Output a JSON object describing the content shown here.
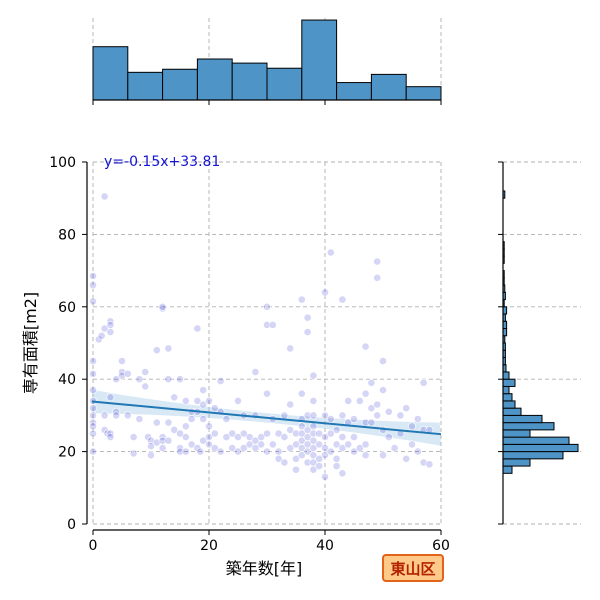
{
  "chart_data": {
    "type": "scatter",
    "xlabel": "築年数[年]",
    "ylabel": "専有面積[m2]",
    "xlim": [
      -1,
      60
    ],
    "ylim": [
      0,
      100
    ],
    "xticks": [
      0,
      20,
      40,
      60
    ],
    "yticks": [
      0,
      20,
      40,
      60,
      80,
      100
    ],
    "grid": true,
    "regression": {
      "slope": -0.15,
      "intercept": 33.81,
      "label": "y=-0.15x+33.81",
      "color": "#1f77b4"
    },
    "points": [
      [
        0,
        68.5
      ],
      [
        0,
        66
      ],
      [
        0,
        61.5
      ],
      [
        0,
        45
      ],
      [
        0,
        41.5
      ],
      [
        0,
        37
      ],
      [
        0,
        34
      ],
      [
        0,
        28
      ],
      [
        0,
        27
      ],
      [
        0,
        25
      ],
      [
        0,
        20
      ],
      [
        0,
        32
      ],
      [
        0,
        30
      ],
      [
        1,
        51
      ],
      [
        1.5,
        52
      ],
      [
        2,
        90.5
      ],
      [
        2,
        54
      ],
      [
        2,
        30
      ],
      [
        2,
        26
      ],
      [
        2.5,
        25
      ],
      [
        3,
        56
      ],
      [
        3,
        55
      ],
      [
        3,
        53
      ],
      [
        3,
        35
      ],
      [
        3,
        25
      ],
      [
        3,
        24
      ],
      [
        4,
        40
      ],
      [
        4,
        31
      ],
      [
        4,
        30
      ],
      [
        5,
        45
      ],
      [
        5,
        42
      ],
      [
        5,
        41
      ],
      [
        6,
        41.5
      ],
      [
        6,
        30
      ],
      [
        7,
        24
      ],
      [
        7,
        19.5
      ],
      [
        8,
        40
      ],
      [
        8,
        29
      ],
      [
        9,
        42
      ],
      [
        9,
        38
      ],
      [
        9.5,
        24
      ],
      [
        10,
        23
      ],
      [
        10,
        21.5
      ],
      [
        10,
        19
      ],
      [
        11,
        28
      ],
      [
        11,
        22.5
      ],
      [
        11,
        48
      ],
      [
        12,
        59.5
      ],
      [
        12,
        60
      ],
      [
        12,
        24
      ],
      [
        12,
        23
      ],
      [
        12,
        21
      ],
      [
        13,
        48.5
      ],
      [
        13,
        40
      ],
      [
        13,
        28
      ],
      [
        13,
        23
      ],
      [
        14,
        35
      ],
      [
        14,
        26
      ],
      [
        15,
        40
      ],
      [
        15,
        25
      ],
      [
        15,
        21
      ],
      [
        15,
        20
      ],
      [
        16,
        34
      ],
      [
        16,
        27
      ],
      [
        16,
        24
      ],
      [
        16,
        20
      ],
      [
        17,
        31
      ],
      [
        17,
        29
      ],
      [
        17,
        22
      ],
      [
        18,
        54
      ],
      [
        18,
        34
      ],
      [
        18,
        31
      ],
      [
        18,
        21
      ],
      [
        18.5,
        20
      ],
      [
        19,
        37
      ],
      [
        19,
        33
      ],
      [
        19,
        29
      ],
      [
        19,
        23
      ],
      [
        20,
        34
      ],
      [
        20,
        27
      ],
      [
        20,
        24
      ],
      [
        20,
        22
      ],
      [
        21,
        32
      ],
      [
        21,
        25
      ],
      [
        21,
        21
      ],
      [
        22,
        39.5
      ],
      [
        22,
        31
      ],
      [
        22,
        20
      ],
      [
        23,
        29
      ],
      [
        23,
        24
      ],
      [
        24,
        25
      ],
      [
        24,
        21
      ],
      [
        25,
        34
      ],
      [
        25,
        24
      ],
      [
        25,
        20
      ],
      [
        26,
        30
      ],
      [
        26,
        25
      ],
      [
        26,
        21
      ],
      [
        27,
        24
      ],
      [
        27,
        22
      ],
      [
        28,
        42
      ],
      [
        28,
        30
      ],
      [
        28,
        23
      ],
      [
        28,
        21
      ],
      [
        29,
        24
      ],
      [
        29,
        22
      ],
      [
        30,
        60
      ],
      [
        30,
        55
      ],
      [
        30,
        36
      ],
      [
        30,
        25
      ],
      [
        30,
        20
      ],
      [
        31,
        55
      ],
      [
        31,
        29
      ],
      [
        31,
        22
      ],
      [
        32,
        25
      ],
      [
        32,
        20
      ],
      [
        32,
        18
      ],
      [
        33,
        30
      ],
      [
        33,
        24
      ],
      [
        33,
        17
      ],
      [
        34,
        48.5
      ],
      [
        34,
        33
      ],
      [
        34,
        26
      ],
      [
        34,
        21
      ],
      [
        35,
        25
      ],
      [
        35,
        22
      ],
      [
        35,
        18
      ],
      [
        35,
        15
      ],
      [
        36,
        62
      ],
      [
        36,
        36
      ],
      [
        36,
        29
      ],
      [
        36,
        27
      ],
      [
        36,
        25
      ],
      [
        36,
        23
      ],
      [
        36,
        21
      ],
      [
        36,
        19
      ],
      [
        37,
        57
      ],
      [
        37,
        53
      ],
      [
        37,
        30
      ],
      [
        37,
        26
      ],
      [
        37,
        24
      ],
      [
        37,
        22
      ],
      [
        37,
        20
      ],
      [
        37,
        17
      ],
      [
        38,
        41
      ],
      [
        38,
        34
      ],
      [
        38,
        30
      ],
      [
        38,
        27
      ],
      [
        38,
        25
      ],
      [
        38,
        23
      ],
      [
        38,
        21
      ],
      [
        38,
        19
      ],
      [
        38,
        17
      ],
      [
        38,
        15
      ],
      [
        39,
        25
      ],
      [
        39,
        22
      ],
      [
        39,
        18
      ],
      [
        39,
        16
      ],
      [
        40,
        64
      ],
      [
        40,
        30
      ],
      [
        40,
        24
      ],
      [
        40,
        21
      ],
      [
        40,
        19
      ],
      [
        40,
        13
      ],
      [
        41,
        75
      ],
      [
        41,
        29
      ],
      [
        41,
        25
      ],
      [
        41,
        20
      ],
      [
        42,
        26
      ],
      [
        42,
        22
      ],
      [
        42,
        18
      ],
      [
        42,
        16
      ],
      [
        43,
        62
      ],
      [
        43,
        30
      ],
      [
        43,
        24
      ],
      [
        43,
        21
      ],
      [
        43,
        14
      ],
      [
        44,
        34
      ],
      [
        44,
        28
      ],
      [
        44,
        22
      ],
      [
        45,
        29
      ],
      [
        45,
        24
      ],
      [
        45,
        20
      ],
      [
        46,
        34
      ],
      [
        46,
        21
      ],
      [
        47,
        49
      ],
      [
        47,
        36
      ],
      [
        47,
        28
      ],
      [
        47,
        22
      ],
      [
        47,
        19
      ],
      [
        48,
        39
      ],
      [
        48,
        32
      ],
      [
        48,
        28
      ],
      [
        49,
        72.5
      ],
      [
        49,
        68
      ],
      [
        49,
        33
      ],
      [
        49,
        30
      ],
      [
        50,
        45
      ],
      [
        50,
        37
      ],
      [
        50,
        26
      ],
      [
        50,
        19
      ],
      [
        51,
        31
      ],
      [
        51,
        24
      ],
      [
        52,
        21
      ],
      [
        53,
        30
      ],
      [
        53,
        25
      ],
      [
        54,
        32
      ],
      [
        54,
        18
      ],
      [
        55,
        27
      ],
      [
        55,
        22
      ],
      [
        56,
        29
      ],
      [
        56,
        20
      ],
      [
        57,
        39
      ],
      [
        57,
        26
      ],
      [
        57,
        17
      ],
      [
        58,
        26
      ],
      [
        58,
        16.5
      ]
    ]
  },
  "top_histogram": {
    "bin_width": 6,
    "bin_starts": [
      0,
      6,
      12,
      18,
      24,
      30,
      36,
      42,
      48,
      54
    ],
    "counts": [
      52,
      27,
      30,
      40,
      36,
      31,
      78,
      17,
      25,
      13
    ],
    "max_count": 80,
    "fill": "#4f94c6",
    "edge": "#000000"
  },
  "right_histogram": {
    "bin_width": 2,
    "bin_starts": [
      14,
      16,
      18,
      20,
      22,
      24,
      26,
      28,
      30,
      32,
      34,
      36,
      38,
      40,
      42,
      44,
      46,
      48,
      50,
      52,
      54,
      56,
      58,
      60,
      62,
      64,
      66,
      68,
      70,
      72,
      74,
      76,
      78,
      80,
      82,
      84,
      86,
      88,
      90
    ],
    "counts": [
      1.5,
      4.5,
      10,
      12.5,
      11,
      4.5,
      8.5,
      6.5,
      3,
      2,
      1.5,
      1,
      2,
      1,
      0.5,
      0.4,
      0.4,
      0.4,
      0.3,
      0.6,
      0.6,
      0.4,
      0.6,
      0.2,
      0.4,
      0.3,
      0.2,
      0.2,
      0,
      0.2,
      0.2,
      0.2,
      0,
      0,
      0,
      0,
      0,
      0,
      0.3
    ],
    "max_count": 13,
    "fill": "#4f94c6",
    "edge": "#000000"
  },
  "colors": {
    "point": "#3f3fd8",
    "grid": "#b0b0b0",
    "band": "#8fbde3"
  },
  "district_label": "東山区"
}
